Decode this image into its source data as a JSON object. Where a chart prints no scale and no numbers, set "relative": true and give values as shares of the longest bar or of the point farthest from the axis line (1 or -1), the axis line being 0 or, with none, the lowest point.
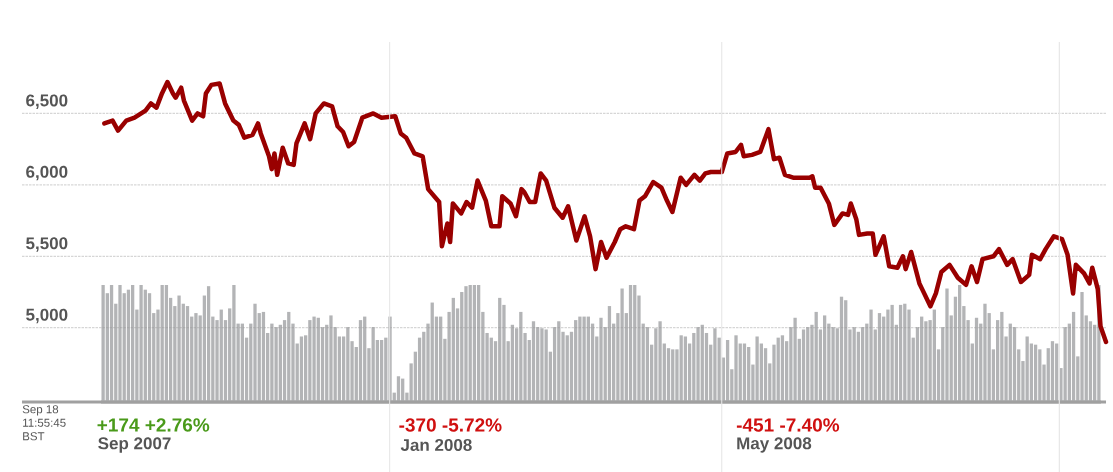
{
  "chart_data": [
    {
      "type": "line",
      "color": "#990000",
      "x": [
        "2007-09-19",
        "2007-09-22",
        "2007-09-24",
        "2007-09-27",
        "2007-09-30",
        "2007-10-04",
        "2007-10-06",
        "2007-10-08",
        "2007-10-10",
        "2007-10-12",
        "2007-10-14",
        "2007-10-15",
        "2007-10-17",
        "2007-10-18",
        "2007-10-21",
        "2007-10-23",
        "2007-10-25",
        "2007-10-26",
        "2007-10-28",
        "2007-10-31",
        "2007-11-02",
        "2007-11-05",
        "2007-11-07",
        "2007-11-09",
        "2007-11-12",
        "2007-11-14",
        "2007-11-15",
        "2007-11-18",
        "2007-11-19",
        "2007-11-20",
        "2007-11-21",
        "2007-11-23",
        "2007-11-25",
        "2007-11-27",
        "2007-11-28",
        "2007-12-01",
        "2007-12-03",
        "2007-12-05",
        "2007-12-08",
        "2007-12-11",
        "2007-12-13",
        "2007-12-15",
        "2007-12-17",
        "2007-12-19",
        "2007-12-22",
        "2007-12-26",
        "2007-12-29",
        "2008-01-03",
        "2008-01-05",
        "2008-01-07",
        "2008-01-10",
        "2008-01-13",
        "2008-01-15",
        "2008-01-19",
        "2008-01-20",
        "2008-01-22",
        "2008-01-23",
        "2008-01-24",
        "2008-01-27",
        "2008-01-29",
        "2008-01-31",
        "2008-02-02",
        "2008-02-05",
        "2008-02-07",
        "2008-02-10",
        "2008-02-11",
        "2008-02-14",
        "2008-02-16",
        "2008-02-18",
        "2008-02-19",
        "2008-02-21",
        "2008-02-23",
        "2008-02-25",
        "2008-02-27",
        "2008-03-01",
        "2008-03-04",
        "2008-03-06",
        "2008-03-09",
        "2008-03-12",
        "2008-03-14",
        "2008-03-16",
        "2008-03-18",
        "2008-03-20",
        "2008-03-23",
        "2008-03-25",
        "2008-03-27",
        "2008-03-30",
        "2008-04-01",
        "2008-04-03",
        "2008-04-06",
        "2008-04-09",
        "2008-04-11",
        "2008-04-13",
        "2008-04-16",
        "2008-04-18",
        "2008-04-21",
        "2008-04-23",
        "2008-04-25",
        "2008-04-27",
        "2008-05-01",
        "2008-05-03",
        "2008-05-06",
        "2008-05-08",
        "2008-05-09",
        "2008-05-12",
        "2008-05-15",
        "2008-05-18",
        "2008-05-20",
        "2008-05-22",
        "2008-05-24",
        "2008-05-27",
        "2008-05-31",
        "2008-06-02",
        "2008-06-03",
        "2008-06-04",
        "2008-06-06",
        "2008-06-09",
        "2008-06-11",
        "2008-06-14",
        "2008-06-16",
        "2008-06-17",
        "2008-06-19",
        "2008-06-20",
        "2008-06-23",
        "2008-06-25",
        "2008-06-26",
        "2008-06-29",
        "2008-07-01",
        "2008-07-04",
        "2008-07-06",
        "2008-07-07",
        "2008-07-09",
        "2008-07-12",
        "2008-07-13",
        "2008-07-16",
        "2008-07-18",
        "2008-07-20",
        "2008-07-23",
        "2008-07-26",
        "2008-07-29",
        "2008-07-31",
        "2008-08-02",
        "2008-08-04",
        "2008-08-08",
        "2008-08-10",
        "2008-08-13",
        "2008-08-15",
        "2008-08-18",
        "2008-08-21",
        "2008-08-22",
        "2008-08-25",
        "2008-08-27",
        "2008-08-30",
        "2008-09-02",
        "2008-09-04",
        "2008-09-06",
        "2008-09-07",
        "2008-09-10",
        "2008-09-12",
        "2008-09-13",
        "2008-09-15",
        "2008-09-16",
        "2008-09-18"
      ],
      "values": [
        6430,
        6450,
        6380,
        6450,
        6470,
        6520,
        6570,
        6540,
        6640,
        6720,
        6640,
        6610,
        6680,
        6590,
        6450,
        6500,
        6480,
        6640,
        6700,
        6710,
        6570,
        6450,
        6420,
        6330,
        6350,
        6430,
        6360,
        6200,
        6110,
        6220,
        6070,
        6260,
        6150,
        6140,
        6290,
        6430,
        6320,
        6500,
        6570,
        6550,
        6410,
        6370,
        6270,
        6300,
        6470,
        6500,
        6470,
        6480,
        6360,
        6330,
        6220,
        6200,
        5970,
        5880,
        5570,
        5730,
        5600,
        5870,
        5800,
        5880,
        5840,
        6030,
        5890,
        5710,
        5710,
        5920,
        5870,
        5780,
        5970,
        5950,
        5880,
        5880,
        6080,
        6030,
        5840,
        5770,
        5850,
        5610,
        5780,
        5640,
        5410,
        5600,
        5490,
        5600,
        5690,
        5710,
        5690,
        5890,
        5920,
        6020,
        5980,
        5890,
        5810,
        6050,
        6000,
        6070,
        6030,
        6080,
        6090,
        6090,
        6220,
        6230,
        6280,
        6200,
        6210,
        6230,
        6390,
        6180,
        6190,
        6070,
        6050,
        6050,
        6050,
        6060,
        5980,
        5980,
        5870,
        5720,
        5800,
        5790,
        5870,
        5760,
        5650,
        5660,
        5660,
        5510,
        5640,
        5430,
        5420,
        5500,
        5410,
        5530,
        5310,
        5270,
        5150,
        5240,
        5390,
        5440,
        5350,
        5300,
        5430,
        5320,
        5480,
        5500,
        5550,
        5440,
        5480,
        5320,
        5370,
        5510,
        5480,
        5550,
        5640,
        5620,
        5510,
        5240,
        5440,
        5380,
        5310,
        5420,
        5270,
        5010,
        4900
      ],
      "xlim": [
        "2007-08-20",
        "2008-09-18"
      ],
      "ylim": [
        4480,
        7000
      ],
      "xticks": [
        {
          "value": "2007-09-30",
          "label": "Sep 2007"
        },
        {
          "value": "2008-01-18",
          "label": "Jan 2008"
        },
        {
          "value": "2008-05-20",
          "label": "May 2008"
        }
      ],
      "ref_lines": [
        {
          "axis": "x",
          "value": "2008-01-01",
          "color": "#e6e6e6"
        },
        {
          "axis": "x",
          "value": "2008-05-01",
          "color": "#e6e6e6"
        },
        {
          "axis": "x",
          "value": "2008-09-01",
          "color": "#e6e6e6"
        }
      ],
      "yticks": [
        {
          "value": 5000,
          "label": "5,000"
        },
        {
          "value": 5500,
          "label": "5,500"
        },
        {
          "value": 6000,
          "label": "6,000"
        },
        {
          "value": 6500,
          "label": "6,500"
        }
      ],
      "grid": "y",
      "annotations": [
        "Sep 18 11:55:45 BST",
        "+174 +2.76%",
        "-370 -5.72%",
        "-451 -7.40%"
      ]
    },
    {
      "type": "bar",
      "color": "#b3b4b6",
      "relative": true,
      "values": [
        1.0,
        0.93,
        1.0,
        0.84,
        1.0,
        0.93,
        0.96,
        1.0,
        0.79,
        1.0,
        0.96,
        0.93,
        0.76,
        0.79,
        1.0,
        1.0,
        0.89,
        0.82,
        0.91,
        0.84,
        0.82,
        0.73,
        0.76,
        0.74,
        0.91,
        0.99,
        0.73,
        0.7,
        0.79,
        0.7,
        0.8,
        1.0,
        0.67,
        0.67,
        0.55,
        0.67,
        0.84,
        0.76,
        0.77,
        0.59,
        0.67,
        0.64,
        0.66,
        0.7,
        0.77,
        0.67,
        0.5,
        0.56,
        0.57,
        0.7,
        0.73,
        0.72,
        0.64,
        0.66,
        0.74,
        0.64,
        0.56,
        0.56,
        0.64,
        0.52,
        0.47,
        0.7,
        0.73,
        0.46,
        0.64,
        0.53,
        0.53,
        0.55,
        0.73,
        0.08,
        0.22,
        0.2,
        0.08,
        0.33,
        0.43,
        0.55,
        0.6,
        0.67,
        0.85,
        0.73,
        0.73,
        0.54,
        0.77,
        0.89,
        0.8,
        0.94,
        0.99,
        1.0,
        1.0,
        1.0,
        0.77,
        0.59,
        0.55,
        0.52,
        0.89,
        0.83,
        0.52,
        0.66,
        0.63,
        0.77,
        0.59,
        0.53,
        0.69,
        0.64,
        0.63,
        0.62,
        0.43,
        0.64,
        0.69,
        0.6,
        0.57,
        0.6,
        0.7,
        0.73,
        0.73,
        0.73,
        0.67,
        0.56,
        0.72,
        0.64,
        0.82,
        0.67,
        0.76,
        0.97,
        0.76,
        1.0,
        1.0,
        0.91,
        0.67,
        0.64,
        0.49,
        0.63,
        0.69,
        0.5,
        0.46,
        0.45,
        0.45,
        0.57,
        0.56,
        0.5,
        0.59,
        0.64,
        0.66,
        0.59,
        0.49,
        0.63,
        0.55,
        0.38,
        0.53,
        0.28,
        0.57,
        0.5,
        0.5,
        0.47,
        0.32,
        0.56,
        0.5,
        0.46,
        0.33,
        0.49,
        0.55,
        0.57,
        0.52,
        0.64,
        0.72,
        0.54,
        0.62,
        0.64,
        0.66,
        0.77,
        0.62,
        0.74,
        0.67,
        0.64,
        0.63,
        0.9,
        0.87,
        0.62,
        0.64,
        0.6,
        0.64,
        0.67,
        0.79,
        0.62,
        0.76,
        0.73,
        0.79,
        0.83,
        0.66,
        0.83,
        0.84,
        0.79,
        0.55,
        0.64,
        0.73,
        0.69,
        0.7,
        0.79,
        0.45,
        0.64,
        0.97,
        0.74,
        0.9,
        1.0,
        0.82,
        0.7,
        0.5,
        0.72,
        0.67,
        0.84,
        0.76,
        0.45,
        0.7,
        0.77,
        0.56,
        0.67,
        0.64,
        0.45,
        0.35,
        0.56,
        0.5,
        0.49,
        0.45,
        0.32,
        0.46,
        0.52,
        0.5,
        0.29,
        0.64,
        0.67,
        0.77,
        0.39,
        0.94,
        0.74,
        0.69,
        0.66,
        1.0
      ],
      "categories": [
        null,
        null,
        null,
        null,
        null,
        null,
        null,
        null,
        null,
        null,
        null,
        null,
        null,
        null,
        null,
        null,
        null,
        null,
        null,
        null,
        null,
        null,
        null,
        null,
        null,
        null,
        null,
        null,
        null,
        null,
        null,
        null,
        null,
        null,
        null,
        null,
        null,
        null,
        null,
        null,
        null,
        null,
        null,
        null,
        null,
        null,
        null,
        null,
        null,
        null,
        null,
        null,
        null,
        null,
        null,
        null,
        null,
        null,
        null,
        null,
        null,
        null,
        null,
        null,
        null,
        null,
        null,
        null,
        null,
        null,
        null,
        null,
        null,
        null,
        null,
        null,
        null,
        null,
        null,
        null,
        null,
        null,
        null,
        null,
        null,
        null,
        null,
        null,
        null,
        null,
        null,
        null,
        null,
        null,
        null,
        null,
        null,
        null,
        null,
        null,
        null,
        null,
        null,
        null,
        null,
        null,
        null,
        null,
        null,
        null,
        null,
        null,
        null,
        null,
        null,
        null,
        null,
        null,
        null,
        null,
        null,
        null,
        null,
        null,
        null,
        null,
        null,
        null,
        null,
        null,
        null,
        null,
        null,
        null,
        null,
        null,
        null,
        null,
        null,
        null,
        null,
        null,
        null,
        null,
        null,
        null,
        null,
        null,
        null,
        null,
        null,
        null,
        null,
        null,
        null,
        null,
        null,
        null,
        null,
        null,
        null,
        null,
        null,
        null,
        null,
        null,
        null,
        null,
        null,
        null,
        null,
        null,
        null,
        null,
        null,
        null,
        null,
        null,
        null,
        null,
        null,
        null,
        null,
        null,
        null,
        null,
        null,
        null,
        null,
        null,
        null,
        null,
        null,
        null,
        null,
        null,
        null,
        null,
        null,
        null,
        null,
        null,
        null,
        null,
        null,
        null,
        null,
        null,
        null,
        null,
        null,
        null,
        null,
        null,
        null,
        null,
        null,
        null,
        null,
        null,
        null,
        null,
        null,
        null,
        null,
        null,
        null,
        null,
        null,
        null,
        null,
        null,
        null,
        null,
        null,
        null,
        null
      ]
    }
  ]
}
